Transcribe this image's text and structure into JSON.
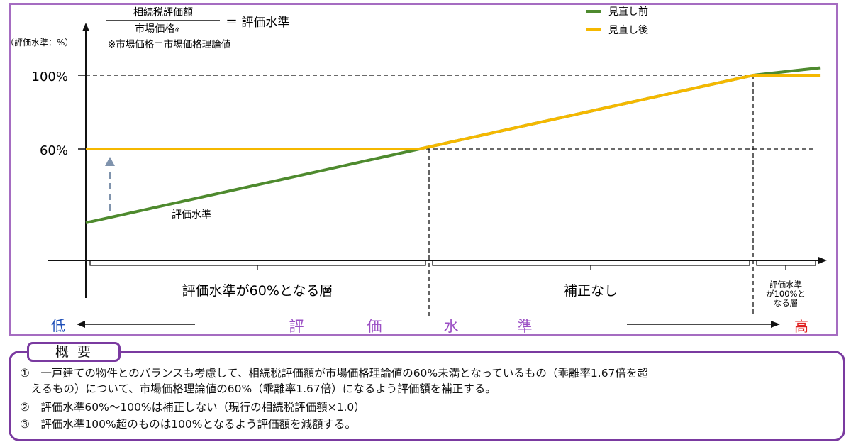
{
  "formula": {
    "numerator": "相続税評価額",
    "denominator": "市場価格",
    "denominator_mark": "※",
    "result": "＝ 評価水準",
    "footnote": "※市場価格＝市場価格理論値"
  },
  "chart_data": {
    "type": "line",
    "ylabel": "（評価水準：%）",
    "yticks": [
      "100%",
      "60%"
    ],
    "legend_position": "top-right",
    "series": [
      {
        "name": "見直し前",
        "color": "#4e8a2e",
        "label": "評価水準",
        "points": [
          [
            0,
            20
          ],
          [
            50,
            60
          ],
          [
            100,
            100
          ],
          [
            110,
            104
          ]
        ]
      },
      {
        "name": "見直し後",
        "color": "#f5b800",
        "points": [
          [
            0,
            60
          ],
          [
            50,
            60
          ],
          [
            100,
            100
          ],
          [
            110,
            100
          ]
        ]
      }
    ],
    "zones": [
      "評価水準が60%となる層",
      "補正なし",
      "評価水準\nが100%と\nなる層"
    ],
    "x_axis": {
      "low": "低",
      "title": [
        "評",
        "価",
        "水",
        "準"
      ],
      "high": "高",
      "low_color": "#1f4fb8",
      "title_color": "#9b4fc4",
      "high_color": "#e02020"
    }
  },
  "summary": {
    "title": "概要",
    "lines": [
      "①　一戸建ての物件とのバランスも考慮して、相続税評価額が市場価格理論値の60%未満となっているもの（乖離率1.67倍を超",
      "　えるもの）について、市場価格理論値の60%（乖離率1.67倍）になるよう評価額を補正する。",
      "②　評価水準60%～100%は補正しない（現行の相続税評価額×1.0）",
      "③　評価水準100%超のものは100%となるよう評価額を減額する。"
    ]
  }
}
